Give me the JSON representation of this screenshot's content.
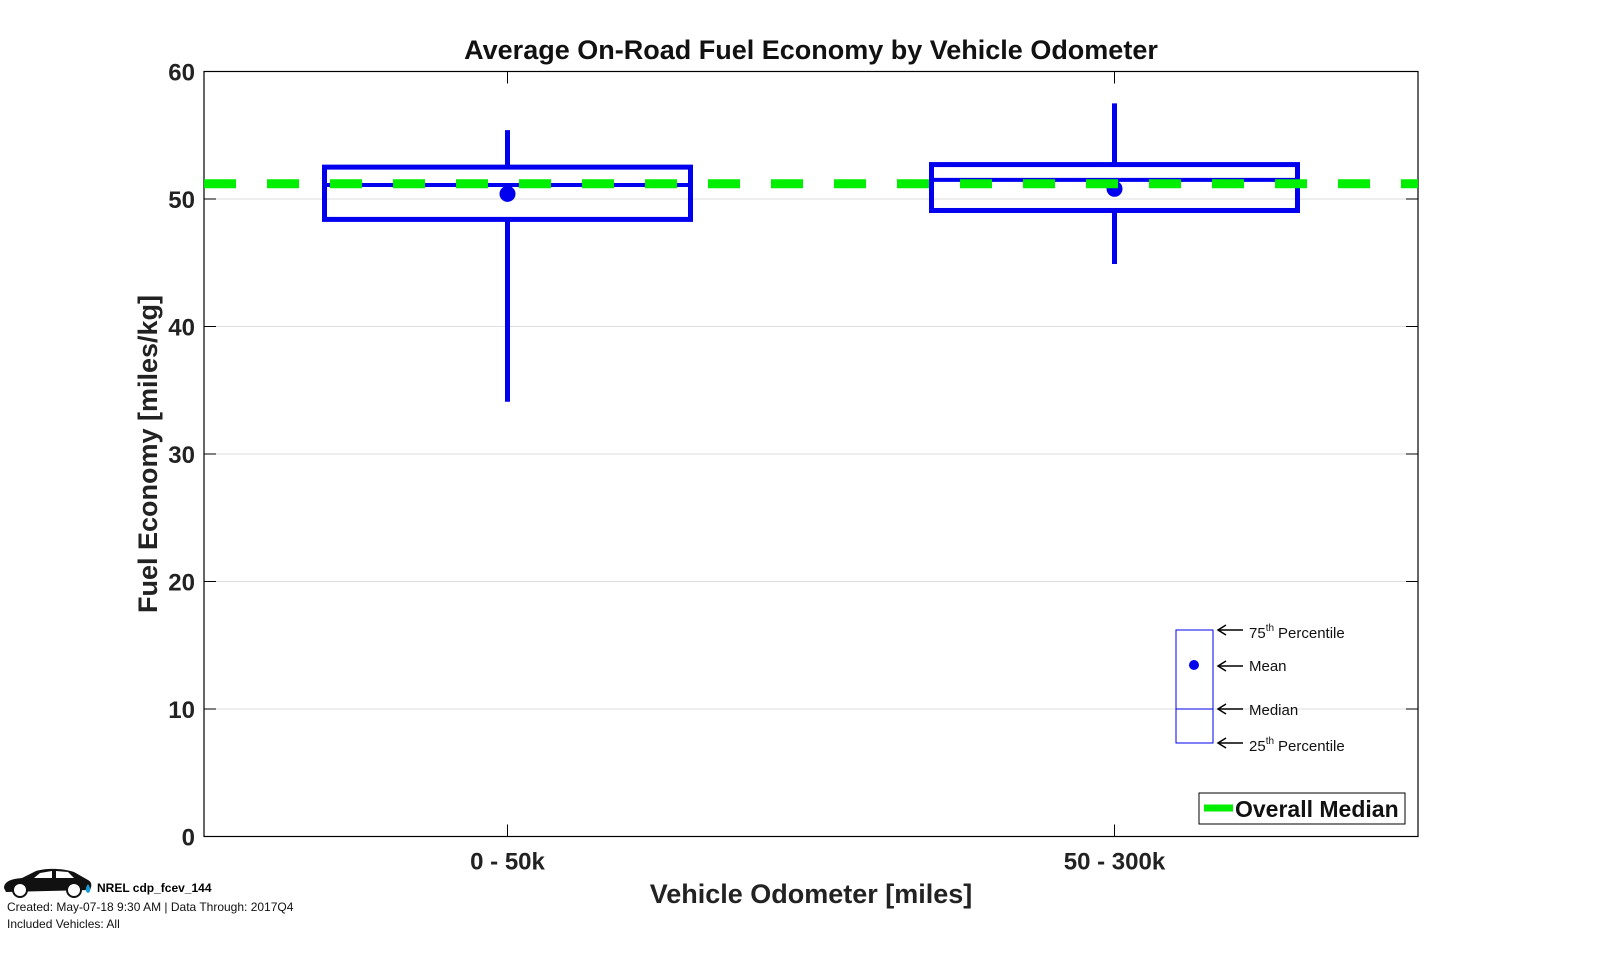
{
  "chart_data": {
    "type": "box",
    "title": "Average On-Road Fuel Economy by Vehicle Odometer",
    "xlabel": "Vehicle Odometer [miles]",
    "ylabel": "Fuel Economy [miles/kg]",
    "ylim": [
      0,
      60
    ],
    "yticks": [
      "0",
      "10",
      "20",
      "30",
      "40",
      "50",
      "60"
    ],
    "ytick_values": [
      0,
      10,
      20,
      30,
      40,
      50,
      60
    ],
    "grid": true,
    "categories": [
      "0 - 50k",
      "50 - 300k"
    ],
    "boxes": [
      {
        "category": "0 - 50k",
        "whisker_low": 34.1,
        "p25": 48.4,
        "median": 51.1,
        "mean": 50.4,
        "p75": 52.5,
        "whisker_high": 55.4
      },
      {
        "category": "50 - 300k",
        "whisker_low": 44.9,
        "p25": 49.1,
        "median": 51.5,
        "mean": 50.8,
        "p75": 52.7,
        "whisker_high": 57.5
      }
    ],
    "overall_median": 51.2,
    "legend": {
      "label": "Overall Median",
      "placement": "bottom-right"
    },
    "key": {
      "p75_sup": "th",
      "p75_num": "75",
      "p75_text": "Percentile",
      "mean": "Mean",
      "median": "Median",
      "p25_num": "25",
      "p25_sup": "th",
      "p25_text": "Percentile"
    },
    "colors": {
      "box": "#0000ee",
      "median_line": "#00ee00",
      "axis": "#000000",
      "grid": "#dddddd"
    }
  },
  "footer": {
    "id": "NREL cdp_fcev_144",
    "created": "Created: May-07-18  9:30 AM | Data Through: 2017Q4",
    "included": "Included Vehicles: All",
    "icon": "car-icon"
  }
}
